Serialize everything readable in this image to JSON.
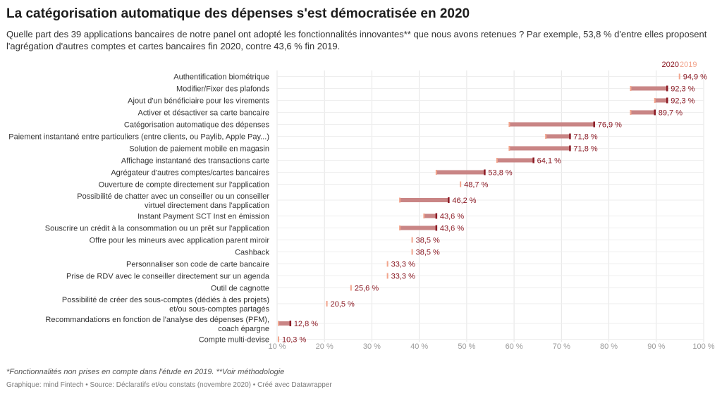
{
  "header": {
    "title": "La catégorisation automatique des dépenses s'est démocratisée en 2020",
    "subtitle": "Quelle part des 39 applications bancaires de notre panel ont adopté les fonctionnalités innovantes** que nous avons retenues ? Par exemple, 53,8 % d'entre elles proposent l'agrégation d'autres comptes et cartes bancaires fin 2020, contre 43,6 % fin 2019."
  },
  "colors": {
    "y2020": "#8b1a24",
    "y2019": "#f2a48c",
    "range": "#c98585",
    "grid": "#e5e5e5"
  },
  "chart_data": {
    "type": "range-dot",
    "title": "La catégorisation automatique des dépenses s'est démocratisée en 2020",
    "legend": [
      "2020",
      "2019"
    ],
    "legend_position": "top-right",
    "xlim": [
      10,
      100
    ],
    "xticks": [
      10,
      20,
      30,
      40,
      50,
      60,
      70,
      80,
      90,
      100
    ],
    "xtick_labels": [
      "10 %",
      "20 %",
      "30 %",
      "40 %",
      "50 %",
      "60 %",
      "70 %",
      "80 %",
      "90 %",
      "100 %"
    ],
    "grid": true,
    "series": [
      {
        "name": "2020"
      },
      {
        "name": "2019"
      }
    ],
    "rows": [
      {
        "label": "Authentification biométrique",
        "v2020": 94.9,
        "v2019": 94.9,
        "value_label": "94,9 %"
      },
      {
        "label": "Modifier/Fixer des plafonds",
        "v2020": 92.3,
        "v2019": 84.6,
        "value_label": "92,3 %"
      },
      {
        "label": "Ajout d'un bénéficiaire pour les virements",
        "v2020": 92.3,
        "v2019": 89.7,
        "value_label": "92,3 %"
      },
      {
        "label": "Activer et désactiver sa carte bancaire",
        "v2020": 89.7,
        "v2019": 84.6,
        "value_label": "89,7 %"
      },
      {
        "label": "Catégorisation automatique des dépenses",
        "v2020": 76.9,
        "v2019": 59.0,
        "value_label": "76,9 %"
      },
      {
        "label": "Paiement instantané entre particuliers (entre clients, ou Paylib, Apple Pay...)",
        "v2020": 71.8,
        "v2019": 66.7,
        "value_label": "71,8 %"
      },
      {
        "label": "Solution de paiement mobile en magasin",
        "v2020": 71.8,
        "v2019": 59.0,
        "value_label": "71,8 %"
      },
      {
        "label": "Affichage instantané des transactions carte",
        "v2020": 64.1,
        "v2019": 56.4,
        "value_label": "64,1 %"
      },
      {
        "label": "Agrégateur d'autres comptes/cartes bancaires",
        "v2020": 53.8,
        "v2019": 43.6,
        "value_label": "53,8 %"
      },
      {
        "label": "Ouverture de compte directement sur l'application",
        "v2020": 48.7,
        "v2019": 48.7,
        "value_label": "48,7 %"
      },
      {
        "label": "Possibilité de chatter avec un conseiller ou un conseiller virtuel directement dans l'application",
        "v2020": 46.2,
        "v2019": 35.9,
        "value_label": "46,2 %"
      },
      {
        "label": "Instant Payment SCT Inst en émission",
        "v2020": 43.6,
        "v2019": 41.0,
        "value_label": "43,6 %"
      },
      {
        "label": "Souscrire un crédit à la consommation ou un prêt sur l'application",
        "v2020": 43.6,
        "v2019": 35.9,
        "value_label": "43,6 %"
      },
      {
        "label": "Offre pour les mineurs avec application parent miroir",
        "v2020": 38.5,
        "v2019": 38.5,
        "value_label": "38,5 %"
      },
      {
        "label": "Cashback",
        "v2020": 38.5,
        "v2019": 38.5,
        "value_label": "38,5 %"
      },
      {
        "label": "Personnaliser son code de carte bancaire",
        "v2020": 33.3,
        "v2019": 33.3,
        "value_label": "33,3 %"
      },
      {
        "label": "Prise de RDV avec le conseiller directement sur un agenda",
        "v2020": 33.3,
        "v2019": 33.3,
        "value_label": "33,3 %"
      },
      {
        "label": "Outil de cagnotte",
        "v2020": 25.6,
        "v2019": 25.6,
        "value_label": "25,6 %"
      },
      {
        "label": "Possibilité de créer des sous-comptes (dédiés à des projets) et/ou sous-comptes partagés",
        "v2020": 20.5,
        "v2019": 20.5,
        "value_label": "20,5 %"
      },
      {
        "label": "Recommandations en fonction de l'analyse des dépenses (PFM), coach épargne",
        "v2020": 12.8,
        "v2019": 10.3,
        "value_label": "12,8 %"
      },
      {
        "label": "Compte multi-devise",
        "v2020": 10.3,
        "v2019": 10.3,
        "value_label": "10,3 %"
      }
    ]
  },
  "footer": {
    "notes": "*Fonctionnalités non prises en compte dans l'étude en 2019. **Voir méthodologie",
    "source": "Graphique: mind Fintech • Source: Déclaratifs et/ou constats (novembre 2020) • Créé avec Datawrapper"
  }
}
